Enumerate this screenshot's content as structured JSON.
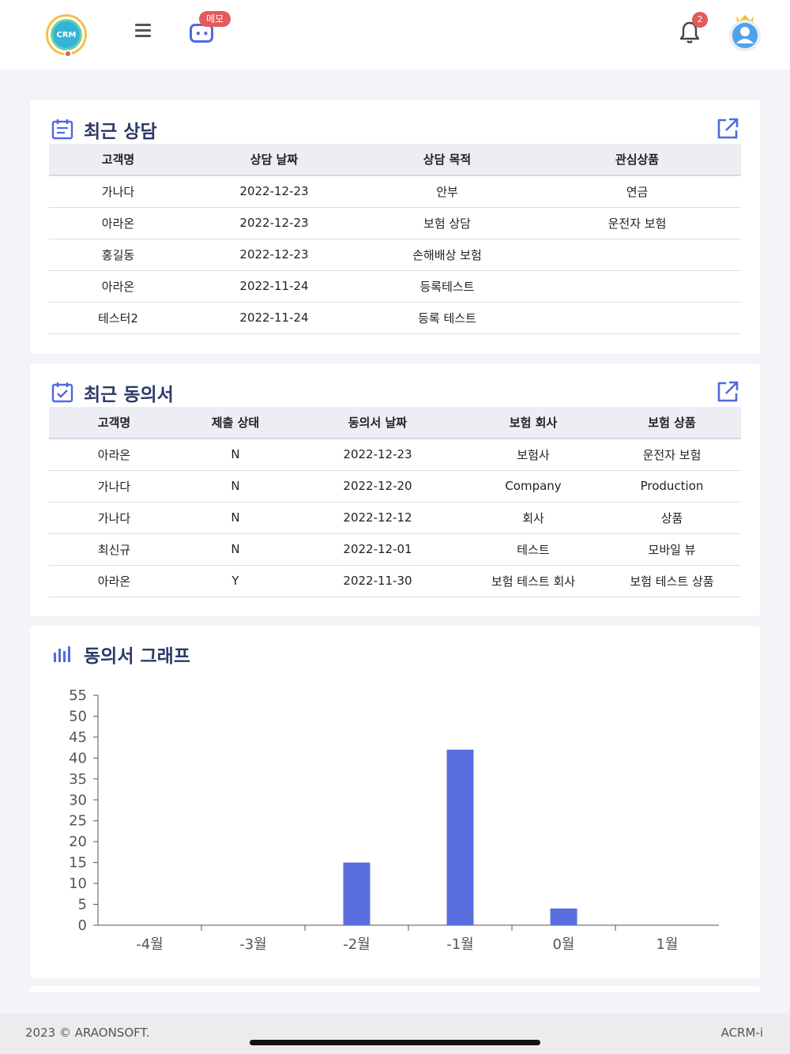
{
  "header": {
    "logo_text": "CRM",
    "memo_badge": "메모",
    "notification_count": "2"
  },
  "recent_consults": {
    "title": "최근 상담",
    "columns": [
      "고객명",
      "상담 날짜",
      "상담 목적",
      "관심상품"
    ],
    "rows": [
      [
        "가나다",
        "2022-12-23",
        "안부",
        "연금"
      ],
      [
        "아라온",
        "2022-12-23",
        "보험 상담",
        "운전자 보험"
      ],
      [
        "홍길동",
        "2022-12-23",
        "손해배상 보험",
        ""
      ],
      [
        "아라온",
        "2022-11-24",
        "등록테스트",
        ""
      ],
      [
        "테스터2",
        "2022-11-24",
        "등록 테스트",
        ""
      ]
    ]
  },
  "recent_consents": {
    "title": "최근 동의서",
    "columns": [
      "고객명",
      "제출 상태",
      "동의서 날짜",
      "보험 회사",
      "보험 상품"
    ],
    "rows": [
      [
        "아라온",
        "N",
        "2022-12-23",
        "보험사",
        "운전자 보험"
      ],
      [
        "가나다",
        "N",
        "2022-12-20",
        "Company",
        "Production"
      ],
      [
        "가나다",
        "N",
        "2022-12-12",
        "회사",
        "상품"
      ],
      [
        "최신규",
        "N",
        "2022-12-01",
        "테스트",
        "모바일 뷰"
      ],
      [
        "아라온",
        "Y",
        "2022-11-30",
        "보험 테스트 회사",
        "보험 테스트 상품"
      ]
    ]
  },
  "consent_graph": {
    "title": "동의서 그래프"
  },
  "chart_data": {
    "type": "bar",
    "categories": [
      "-4월",
      "-3월",
      "-2월",
      "-1월",
      "0월",
      "1월"
    ],
    "values": [
      0,
      0,
      15,
      42,
      4,
      0
    ],
    "ylim": [
      0,
      55
    ],
    "yticks": [
      0,
      5,
      10,
      15,
      20,
      25,
      30,
      35,
      40,
      45,
      50,
      55
    ],
    "color": "#5a6ee0",
    "grid": false
  },
  "footer": {
    "copyright": "2023 © ARAONSOFT.",
    "app_name": "ACRM-i"
  }
}
